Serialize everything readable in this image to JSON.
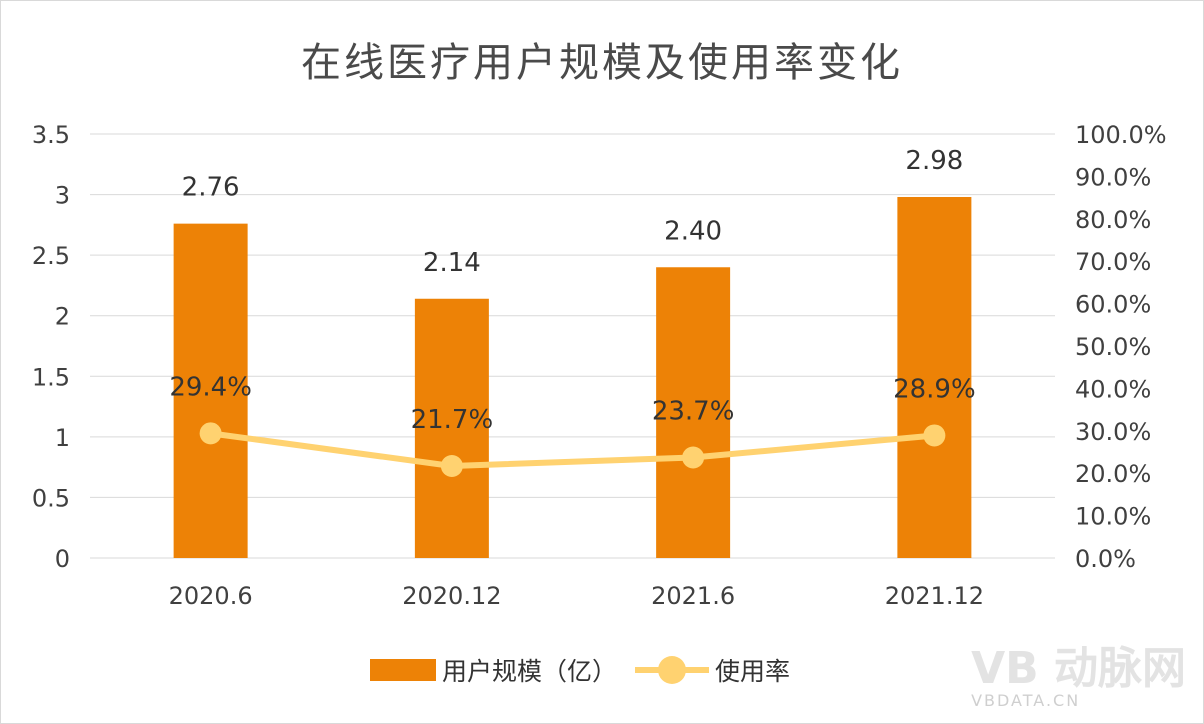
{
  "colors": {
    "bar": "#ED8206",
    "line": "#FFD270",
    "grid": "#d9d9d9",
    "text": "#404040"
  },
  "chart_data": {
    "type": "bar",
    "title": "在线医疗用户规模及使用率变化",
    "categories": [
      "2020.6",
      "2020.12",
      "2021.6",
      "2021.12"
    ],
    "series": [
      {
        "name": "用户规模（亿）",
        "type": "bar",
        "axis": "left",
        "values": [
          2.76,
          2.14,
          2.4,
          2.98
        ],
        "labels": [
          "2.76",
          "2.14",
          "2.40",
          "2.98"
        ]
      },
      {
        "name": "使用率",
        "type": "line",
        "axis": "right",
        "values": [
          29.4,
          21.7,
          23.7,
          28.9
        ],
        "labels": [
          "29.4%",
          "21.7%",
          "23.7%",
          "28.9%"
        ]
      }
    ],
    "y_left": {
      "min": 0,
      "max": 3.5,
      "ticks": [
        "0",
        "0.5",
        "1",
        "1.5",
        "2",
        "2.5",
        "3",
        "3.5"
      ]
    },
    "y_right": {
      "min": 0,
      "max": 100,
      "ticks": [
        "0.0%",
        "10.0%",
        "20.0%",
        "30.0%",
        "40.0%",
        "50.0%",
        "60.0%",
        "70.0%",
        "80.0%",
        "90.0%",
        "100.0%"
      ]
    },
    "grid": true,
    "legend_position": "bottom"
  },
  "watermark": {
    "logo": "VB 动脉网",
    "url": "VBDATA.CN"
  }
}
